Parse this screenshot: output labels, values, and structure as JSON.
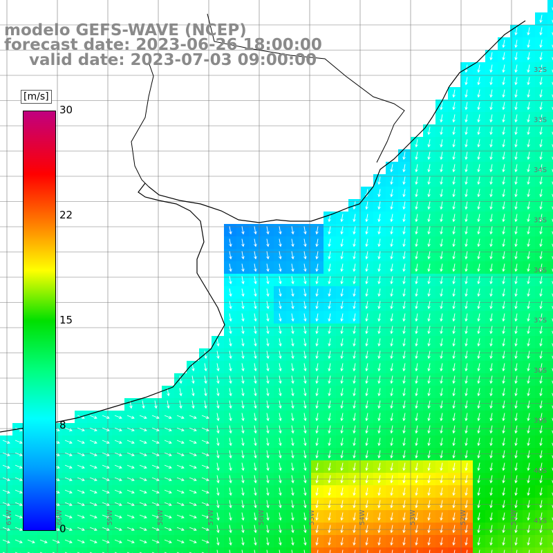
{
  "header": {
    "model": "modelo GEFS-WAVE (NCEP)",
    "forecast": "forecast date: 2023-06-26 18:00:00",
    "valid": "valid date: 2023-07-03 09:00:00"
  },
  "legend": {
    "unit": "[m/s]",
    "ticks": [
      "30",
      "22",
      "15",
      "8",
      "0"
    ],
    "colors": [
      "#0000ff",
      "#00a0ff",
      "#00ffff",
      "#00ff80",
      "#00e000",
      "#ffff00",
      "#ff8000",
      "#ff0000",
      "#c00080"
    ]
  },
  "map": {
    "lon_labels": [
      "61W",
      "60W",
      "59W",
      "58W",
      "57W",
      "56W",
      "55W",
      "54W",
      "53W",
      "52W",
      "51W"
    ],
    "lat_labels": [
      "32S",
      "33S",
      "34S",
      "35S",
      "36S",
      "37S",
      "38S",
      "39S",
      "40S",
      "41S"
    ],
    "land_color": "#ffffff",
    "wind_direction": "southward"
  }
}
